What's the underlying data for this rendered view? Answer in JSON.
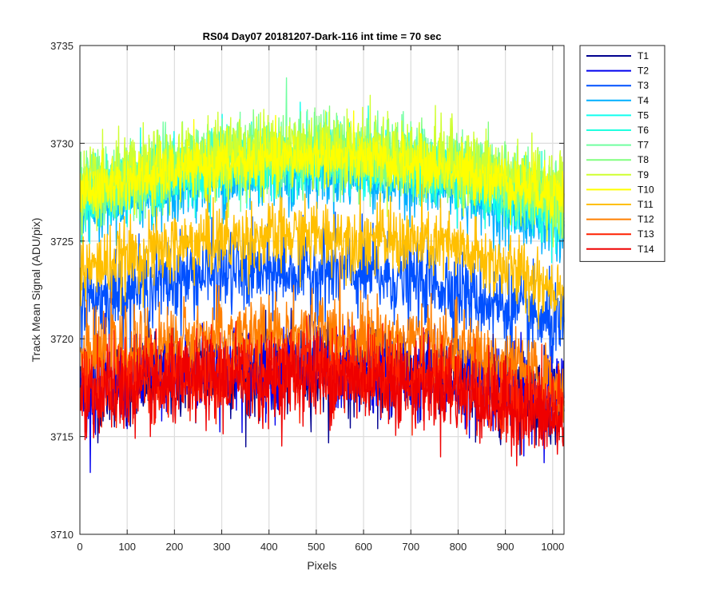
{
  "chart_data": {
    "type": "line",
    "title": "RS04 Day07 20181207-Dark-116 int time = 70 sec",
    "xlabel": "Pixels",
    "ylabel": "Track Mean Signal (ADU/pix)",
    "xlim": [
      0,
      1024
    ],
    "ylim": [
      3710,
      3735
    ],
    "xticks": [
      0,
      100,
      200,
      300,
      400,
      500,
      600,
      700,
      800,
      900,
      1000
    ],
    "yticks": [
      3710,
      3715,
      3720,
      3725,
      3730,
      3735
    ],
    "grid": true,
    "legend_position": "outside-top-right",
    "x_range": [
      1,
      1024
    ],
    "series": [
      {
        "name": "T1",
        "color": "#00008f",
        "base": [
          3717.5,
          3718.3,
          3718.5,
          3718.0,
          3716.8
        ],
        "noise": 1.6
      },
      {
        "name": "T2",
        "color": "#0000ef",
        "base": [
          3717.6,
          3718.4,
          3718.6,
          3718.1,
          3717.0
        ],
        "noise": 1.6
      },
      {
        "name": "T3",
        "color": "#0050ff",
        "base": [
          3722.0,
          3723.3,
          3723.5,
          3722.8,
          3720.5
        ],
        "noise": 1.5
      },
      {
        "name": "T4",
        "color": "#00afff",
        "base": [
          3726.5,
          3728.0,
          3728.5,
          3727.8,
          3725.5
        ],
        "noise": 1.2
      },
      {
        "name": "T5",
        "color": "#10ffef",
        "base": [
          3727.0,
          3728.6,
          3729.2,
          3728.5,
          3726.2
        ],
        "noise": 1.2
      },
      {
        "name": "T6",
        "color": "#20ffdf",
        "base": [
          3727.2,
          3728.9,
          3729.4,
          3728.7,
          3726.5
        ],
        "noise": 1.2
      },
      {
        "name": "T7",
        "color": "#70ffa0",
        "base": [
          3727.4,
          3729.1,
          3729.6,
          3728.9,
          3727.0
        ],
        "noise": 1.3
      },
      {
        "name": "T8",
        "color": "#80ff7f",
        "base": [
          3727.5,
          3729.2,
          3729.8,
          3729.0,
          3727.2
        ],
        "noise": 1.3
      },
      {
        "name": "T9",
        "color": "#cfff30",
        "base": [
          3727.6,
          3729.3,
          3730.0,
          3729.2,
          3727.5
        ],
        "noise": 1.4
      },
      {
        "name": "T10",
        "color": "#ffff00",
        "base": [
          3727.5,
          3728.8,
          3729.3,
          3728.7,
          3727.4
        ],
        "noise": 1.0
      },
      {
        "name": "T11",
        "color": "#ffbf00",
        "base": [
          3723.5,
          3725.0,
          3725.3,
          3724.8,
          3722.5
        ],
        "noise": 1.3
      },
      {
        "name": "T12",
        "color": "#ff7f00",
        "base": [
          3719.0,
          3720.0,
          3720.3,
          3719.7,
          3717.5
        ],
        "noise": 1.4
      },
      {
        "name": "T13",
        "color": "#ff2000",
        "base": [
          3717.5,
          3718.3,
          3718.6,
          3718.0,
          3716.2
        ],
        "noise": 1.5
      },
      {
        "name": "T14",
        "color": "#ef0000",
        "base": [
          3717.0,
          3717.8,
          3718.1,
          3717.5,
          3715.6
        ],
        "noise": 1.5
      }
    ]
  }
}
